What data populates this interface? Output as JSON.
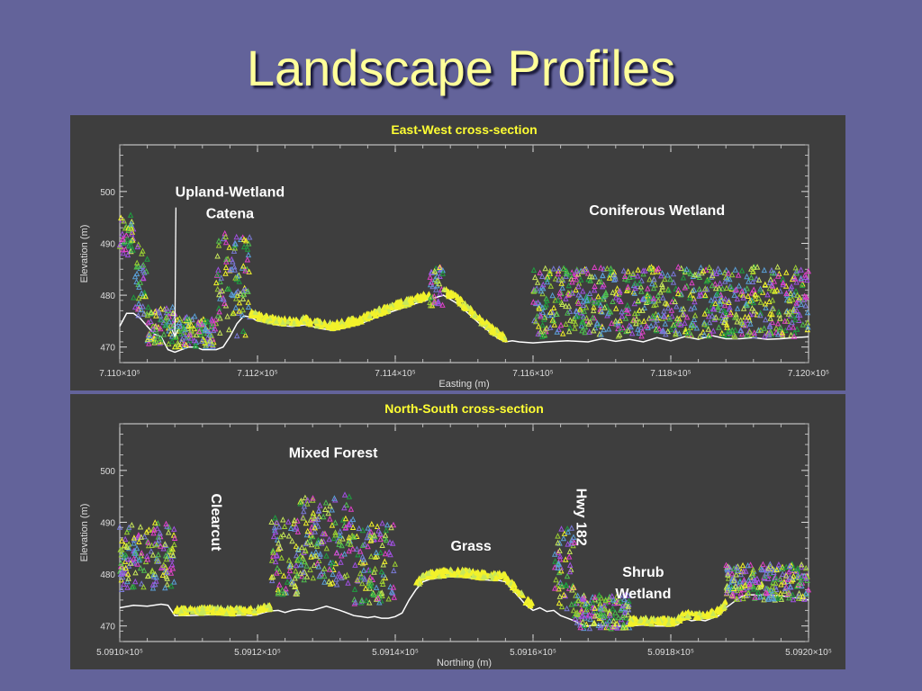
{
  "slide": {
    "title": "Landscape Profiles"
  },
  "colors": {
    "background": "#63639a",
    "panel": "#3e3e3e",
    "title": "#ffff99",
    "panel_title": "#ffff33",
    "annotation": "#ffffff",
    "ground": "#ffffff",
    "veg_palette": [
      "#f2f22a",
      "#c8e85a",
      "#9acd32",
      "#4fbf4f",
      "#1f9f3f",
      "#7a7ad8",
      "#a050e0",
      "#e040c8",
      "#5aa0d8"
    ]
  },
  "chart_data": [
    {
      "type": "scatter",
      "title": "East-West cross-section",
      "xlabel": "Easting (m)",
      "ylabel": "Elevation (m)",
      "xlim": [
        711000,
        712000
      ],
      "ylim": [
        467,
        509
      ],
      "xtick_labels": [
        "7.110×10⁵",
        "7.112×10⁵",
        "7.114×10⁵",
        "7.116×10⁵",
        "7.118×10⁵",
        "7.120×10⁵"
      ],
      "xticks": [
        711000,
        711200,
        711400,
        711600,
        711800,
        712000
      ],
      "yticks": [
        470,
        480,
        490,
        500
      ],
      "ground": {
        "x": [
          711000,
          711010,
          711020,
          711030,
          711040,
          711050,
          711060,
          711070,
          711080,
          711090,
          711100,
          711110,
          711120,
          711130,
          711140,
          711150,
          711160,
          711170,
          711180,
          711190,
          711200,
          711210,
          711230,
          711250,
          711270,
          711290,
          711310,
          711330,
          711350,
          711370,
          711390,
          711410,
          711430,
          711450,
          711470,
          711490,
          711510,
          711525,
          711540,
          711550,
          711560,
          711570,
          711580,
          711600,
          711620,
          711650,
          711680,
          711700,
          711720,
          711740,
          711760,
          711780,
          711800,
          711820,
          711840,
          711860,
          711880,
          711900,
          711920,
          711940,
          711960,
          711980,
          712000
        ],
        "y": [
          474.0,
          476.5,
          476.5,
          475.5,
          474.0,
          472.5,
          472.0,
          469.5,
          469.0,
          469.5,
          470.0,
          470.0,
          469.5,
          469.5,
          469.5,
          470.0,
          472.0,
          474.5,
          476.0,
          475.8,
          475.0,
          474.8,
          474.2,
          474.0,
          474.3,
          473.6,
          473.2,
          473.8,
          474.5,
          475.6,
          476.6,
          477.5,
          478.4,
          479.2,
          480.0,
          478.4,
          476.0,
          474.2,
          472.6,
          471.6,
          471.0,
          471.2,
          471.0,
          470.8,
          471.0,
          471.2,
          471.0,
          471.6,
          471.1,
          471.5,
          471.0,
          471.8,
          471.2,
          472.0,
          471.5,
          472.2,
          471.6,
          471.6,
          471.8,
          471.5,
          471.6,
          471.8,
          472.0
        ]
      },
      "vegetation_bands": [
        {
          "x": [
            711000,
            711020
          ],
          "ymin": 487.0,
          "ymax": 495.5,
          "cover": "mixed"
        },
        {
          "x": [
            711020,
            711040
          ],
          "ymin": 476.0,
          "ymax": 490.0,
          "cover": "mixed"
        },
        {
          "x": [
            711040,
            711080
          ],
          "ymin": 470.5,
          "ymax": 478.0,
          "cover": "mixed"
        },
        {
          "x": [
            711080,
            711140
          ],
          "ymin": 470.0,
          "ymax": 476.0,
          "cover": "mixed"
        },
        {
          "x": [
            711140,
            711190
          ],
          "ymin": 472.0,
          "ymax": 492.0,
          "cover": "mixed"
        },
        {
          "x": [
            711190,
            711450
          ],
          "ymin": 473.5,
          "ymax": 479.0,
          "cover": "grass"
        },
        {
          "x": [
            711450,
            711470
          ],
          "ymin": 478.0,
          "ymax": 485.5,
          "cover": "mixed"
        },
        {
          "x": [
            711470,
            711560
          ],
          "ymin": 471.5,
          "ymax": 480.5,
          "cover": "grass"
        },
        {
          "x": [
            711600,
            712000
          ],
          "ymin": 472.0,
          "ymax": 485.5,
          "cover": "mixed"
        }
      ],
      "annotations": [
        {
          "text": [
            "Upland-Wetland",
            "Catena"
          ],
          "x": 711160,
          "y": 499.0,
          "arrow_to": {
            "x": 711080,
            "y": 472.0
          }
        },
        {
          "text": [
            "Coniferous Wetland"
          ],
          "x": 711780,
          "y": 495.5
        }
      ],
      "grid": false,
      "legend": "none"
    },
    {
      "type": "scatter",
      "title": "North-South cross-section",
      "xlabel": "Northing (m)",
      "ylabel": "Elevation (m)",
      "xlim": [
        509100,
        509200
      ],
      "ylim": [
        467,
        509
      ],
      "xtick_labels": [
        "5.0910×10⁵",
        "5.0912×10⁵",
        "5.0914×10⁵",
        "5.0916×10⁵",
        "5.0918×10⁵",
        "5.0920×10⁵"
      ],
      "xticks": [
        509100,
        509120,
        509140,
        509160,
        509180,
        509200
      ],
      "yticks": [
        470,
        480,
        490,
        500
      ],
      "ground": {
        "x": [
          509100,
          509102,
          509104,
          509106,
          509107,
          509108,
          509110,
          509112,
          509114,
          509116,
          509118,
          509119,
          509120,
          509121,
          509122,
          509123,
          509124,
          509125,
          509126,
          509128,
          509130,
          509132,
          509134,
          509135,
          509136,
          509137,
          509138,
          509139,
          509140,
          509141,
          509142,
          509143,
          509144,
          509145,
          509146,
          509148,
          509150,
          509152,
          509154,
          509155,
          509156,
          509157,
          509158,
          509159,
          509160,
          509161,
          509162,
          509163,
          509164,
          509165,
          509166,
          509167,
          509168,
          509169,
          509170,
          509172,
          509174,
          509176,
          509178,
          509180,
          509181,
          509182,
          509183,
          509184,
          509185,
          509186,
          509187,
          509188,
          509189,
          509190,
          509191,
          509192,
          509194,
          509196,
          509198,
          509200
        ],
        "y": [
          473.5,
          474.0,
          473.8,
          474.2,
          474.0,
          472.0,
          472.0,
          472.1,
          472.2,
          472.0,
          472.1,
          472.0,
          472.2,
          472.6,
          472.9,
          473.0,
          472.6,
          473.0,
          473.2,
          473.0,
          473.8,
          473.0,
          472.0,
          471.8,
          471.6,
          471.8,
          471.5,
          471.5,
          471.8,
          472.5,
          475.0,
          477.0,
          478.5,
          479.0,
          479.2,
          479.5,
          479.4,
          479.0,
          478.8,
          478.8,
          478.5,
          477.0,
          475.5,
          474.0,
          473.0,
          473.5,
          472.8,
          473.0,
          472.0,
          471.5,
          471.0,
          470.2,
          470.0,
          470.2,
          470.0,
          470.0,
          470.0,
          470.2,
          470.0,
          470.0,
          470.2,
          471.5,
          471.0,
          471.2,
          471.0,
          471.5,
          472.0,
          473.5,
          474.5,
          475.5,
          476.0,
          476.0,
          476.0,
          475.8,
          475.5,
          475.0
        ]
      },
      "vegetation_bands": [
        {
          "x": [
            509100,
            509108
          ],
          "ymin": 477.0,
          "ymax": 490.0,
          "cover": "mixed"
        },
        {
          "x": [
            509108,
            509122
          ],
          "ymin": 472.0,
          "ymax": 475.0,
          "cover": "grass"
        },
        {
          "x": [
            509122,
            509126
          ],
          "ymin": 476.0,
          "ymax": 491.0,
          "cover": "mixed"
        },
        {
          "x": [
            509126,
            509134
          ],
          "ymin": 478.0,
          "ymax": 495.5,
          "cover": "mixed"
        },
        {
          "x": [
            509134,
            509140
          ],
          "ymin": 474.0,
          "ymax": 490.0,
          "cover": "mixed"
        },
        {
          "x": [
            509143,
            509160
          ],
          "ymin": 478.5,
          "ymax": 480.5,
          "cover": "grass"
        },
        {
          "x": [
            509163,
            509166
          ],
          "ymin": 473.0,
          "ymax": 489.0,
          "cover": "mixed"
        },
        {
          "x": [
            509166,
            509174
          ],
          "ymin": 469.5,
          "ymax": 476.0,
          "cover": "mixed"
        },
        {
          "x": [
            509174,
            509188
          ],
          "ymin": 469.5,
          "ymax": 474.0,
          "cover": "grass"
        },
        {
          "x": [
            509188,
            509200
          ],
          "ymin": 475.0,
          "ymax": 482.0,
          "cover": "mixed"
        }
      ],
      "annotations": [
        {
          "text": [
            "Mixed Forest"
          ],
          "x": 509131,
          "y": 502.5
        },
        {
          "text": [
            "Clearcut"
          ],
          "x": 509114,
          "y": 490.0,
          "rotate": 90
        },
        {
          "text": [
            "Grass"
          ],
          "x": 509151,
          "y": 484.5
        },
        {
          "text": [
            "Hwy 182"
          ],
          "x": 509167,
          "y": 491.0,
          "rotate": 90
        },
        {
          "text": [
            "Shrub",
            "Wetland"
          ],
          "x": 509176,
          "y": 479.5
        }
      ],
      "grid": false,
      "legend": "none"
    }
  ]
}
